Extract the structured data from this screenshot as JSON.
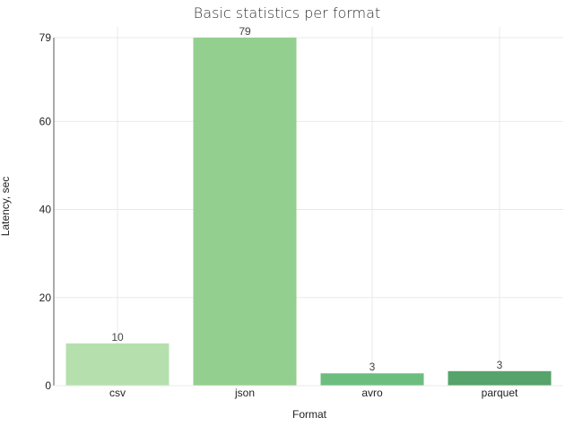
{
  "chart_data": {
    "type": "bar",
    "title": "Basic statistics per format",
    "xlabel": "Format",
    "ylabel": "Latency, sec",
    "categories": [
      "csv",
      "json",
      "avro",
      "parquet"
    ],
    "values": [
      9.6,
      79,
      2.8,
      3.3
    ],
    "data_labels": [
      "10",
      "79",
      "3",
      "3"
    ],
    "bar_colors": [
      "#b5e0ad",
      "#93cf8e",
      "#6cbe7e",
      "#56a36c"
    ],
    "yticks": [
      0,
      20,
      40,
      60,
      79
    ],
    "ytick_labels": [
      "0",
      "20",
      "40",
      "60",
      "79"
    ],
    "ylim": [
      0,
      79
    ],
    "grid": true,
    "legend": "none"
  }
}
